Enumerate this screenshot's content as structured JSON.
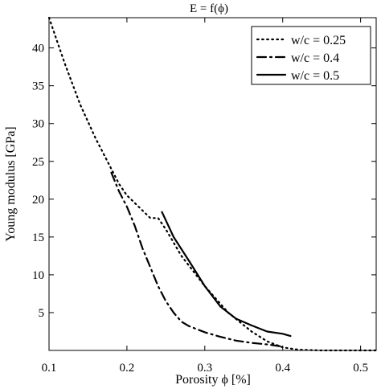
{
  "chart_data": {
    "type": "line",
    "title": "E = f(ϕ)",
    "xlabel": "Porosity ϕ [%]",
    "ylabel": "Young modulus [GPa]",
    "xlim": [
      0.1,
      0.52
    ],
    "ylim": [
      0,
      44
    ],
    "xticks": [
      0.1,
      0.2,
      0.3,
      0.4,
      0.5
    ],
    "xtick_labels": [
      "0.1",
      "0.2",
      "0.3",
      "0.4",
      "0.5"
    ],
    "yticks": [
      5,
      10,
      15,
      20,
      25,
      30,
      35,
      40
    ],
    "ytick_labels": [
      "5",
      "10",
      "15",
      "20",
      "25",
      "30",
      "35",
      "40"
    ],
    "grid": false,
    "legend_position": "top-right",
    "series": [
      {
        "name": "w/c = 0.25",
        "style": "dotted",
        "color": "#000000",
        "x": [
          0.1,
          0.12,
          0.14,
          0.16,
          0.18,
          0.19,
          0.2,
          0.21,
          0.22,
          0.23,
          0.24,
          0.25,
          0.27,
          0.3,
          0.33,
          0.36,
          0.38,
          0.4,
          0.42,
          0.45,
          0.5,
          0.52
        ],
        "y": [
          44,
          38,
          32.5,
          28,
          24,
          22,
          20.5,
          19.5,
          18.5,
          17.5,
          17.5,
          16,
          12.5,
          8.5,
          5,
          2.5,
          1.2,
          0.4,
          0.1,
          0,
          0,
          0
        ]
      },
      {
        "name": "w/c = 0.4",
        "style": "dash-dot",
        "color": "#000000",
        "x": [
          0.18,
          0.19,
          0.2,
          0.21,
          0.22,
          0.23,
          0.24,
          0.25,
          0.26,
          0.27,
          0.28,
          0.3,
          0.32,
          0.34,
          0.36,
          0.38,
          0.4
        ],
        "y": [
          23.5,
          21,
          19,
          16.5,
          13.5,
          11,
          8.5,
          6.5,
          5,
          3.8,
          3.2,
          2.4,
          1.8,
          1.3,
          1,
          0.8,
          0.5
        ]
      },
      {
        "name": "w/c = 0.5",
        "style": "solid",
        "color": "#000000",
        "x": [
          0.245,
          0.26,
          0.28,
          0.3,
          0.32,
          0.34,
          0.36,
          0.38,
          0.4,
          0.41
        ],
        "y": [
          18.3,
          15,
          11.8,
          8.5,
          5.8,
          4.2,
          3.3,
          2.5,
          2.2,
          1.9
        ]
      }
    ]
  }
}
